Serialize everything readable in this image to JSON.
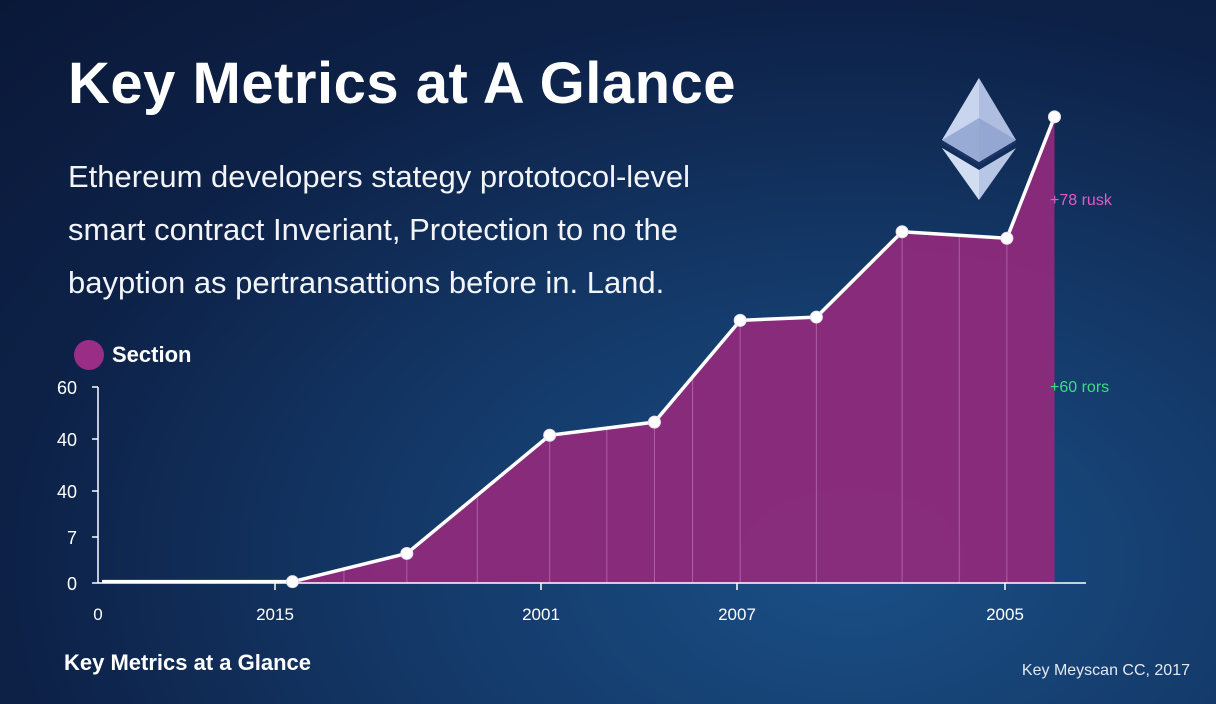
{
  "header": {
    "title": "Key Metrics at A Glance",
    "description_lines": [
      "Ethereum developers stategy prototocol-level",
      "smart contract Inveriant, Protection to no the",
      "bayption as pertransattions before in. Land."
    ]
  },
  "logo_icon": "ethereum-diamond-icon",
  "footer": {
    "left_text": "Key Metrics at a Glance",
    "right_text": "Key Meyscan CC, 2017"
  },
  "colors": {
    "area_fill": "#8e2a7b",
    "line": "#ffffff",
    "annotation_pink": "#e05cc6",
    "annotation_green": "#3ddc84",
    "legend_dot": "#9a2d86"
  },
  "chart_data": {
    "type": "area",
    "legend": [
      {
        "label": "Section",
        "color": "#9a2d86"
      }
    ],
    "y_tick_labels": [
      "0",
      "7",
      "40",
      "40",
      "60"
    ],
    "x_tick_labels": [
      "0",
      "2015",
      "2001",
      "2007",
      "2005"
    ],
    "points": [
      {
        "x": 0.0,
        "y": 0.4
      },
      {
        "x": 1.0,
        "y": 0.4
      },
      {
        "x": 1.6,
        "y": 9.0
      },
      {
        "x": 2.35,
        "y": 45.0
      },
      {
        "x": 2.9,
        "y": 49.0
      },
      {
        "x": 3.35,
        "y": 80.0
      },
      {
        "x": 3.75,
        "y": 81.0
      },
      {
        "x": 4.2,
        "y": 107.0
      },
      {
        "x": 4.75,
        "y": 105.0
      },
      {
        "x": 5.0,
        "y": 142.0
      }
    ],
    "markers": [
      {
        "x": 1.0,
        "y": 0.4
      },
      {
        "x": 1.6,
        "y": 9.0
      },
      {
        "x": 2.35,
        "y": 45.0
      },
      {
        "x": 2.9,
        "y": 49.0
      },
      {
        "x": 3.35,
        "y": 80.0
      },
      {
        "x": 3.75,
        "y": 81.0
      },
      {
        "x": 4.2,
        "y": 107.0
      },
      {
        "x": 4.75,
        "y": 105.0
      },
      {
        "x": 5.0,
        "y": 142.0
      }
    ],
    "annotations": [
      {
        "text": "+78 rusk",
        "y": 117,
        "color": "#e05cc6"
      },
      {
        "text": "+60 rors",
        "y": 60,
        "color": "#3ddc84"
      }
    ]
  }
}
